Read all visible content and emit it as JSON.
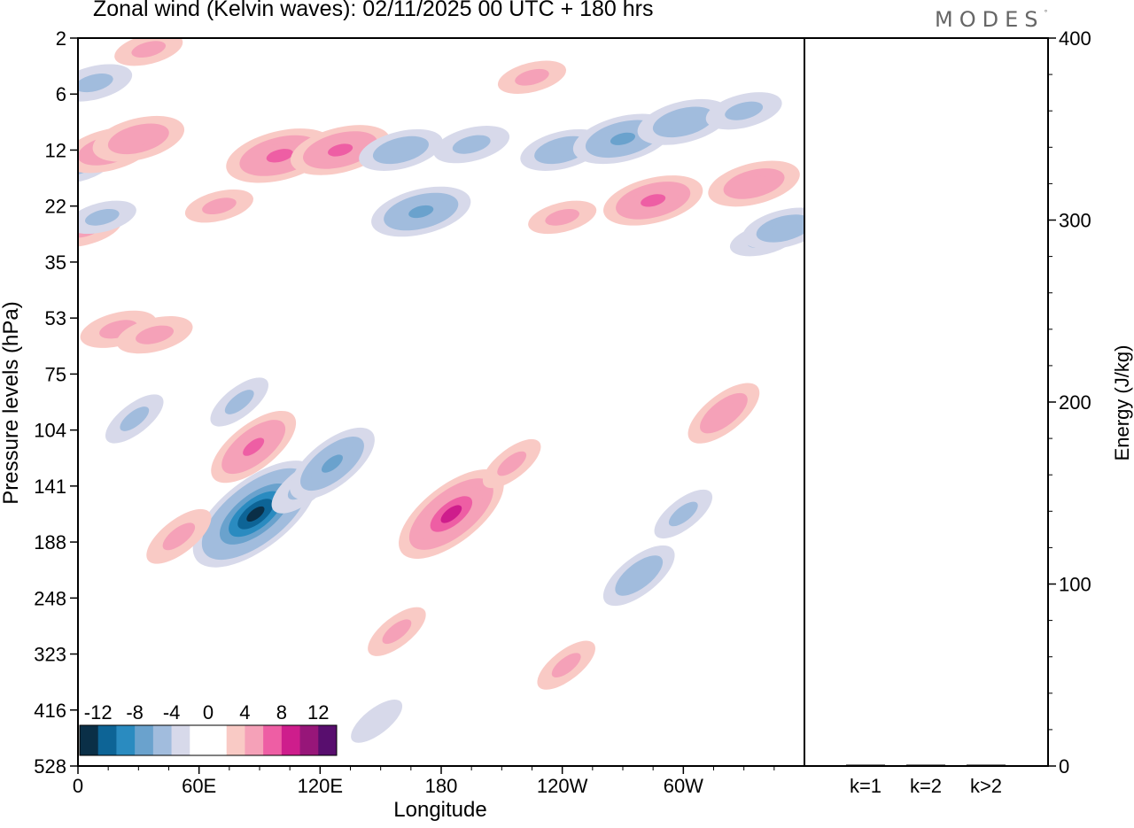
{
  "title": "Zonal wind (Kelvin waves):  02/11/2025  00 UTC  + 180 hrs",
  "brand": "MODES",
  "brand_mark": "°",
  "colors": {
    "neg": [
      "#0a2f47",
      "#0d6496",
      "#2a8bc0",
      "#6aa2cd",
      "#a1bcdd",
      "#d7d9ea"
    ],
    "zero": "#ffffff",
    "pos": [
      "#f9cac5",
      "#f5a1b8",
      "#ee5ea4",
      "#ce1d8c",
      "#971679",
      "#580e6e"
    ]
  },
  "chart_data": [
    {
      "type": "heatmap",
      "title": "Zonal wind (Kelvin waves):  02/11/2025  00 UTC  + 180 hrs",
      "xlabel": "Longitude",
      "ylabel": "Pressure levels (hPa)",
      "x_ticks": [
        "0",
        "60E",
        "120E",
        "180",
        "120W",
        "60W"
      ],
      "x_tick_degrees": [
        0,
        60,
        120,
        180,
        240,
        300
      ],
      "xlim": [
        0,
        360
      ],
      "y_ticks": [
        "2",
        "6",
        "12",
        "22",
        "35",
        "53",
        "75",
        "104",
        "141",
        "188",
        "248",
        "323",
        "416",
        "528"
      ],
      "colorbar_labels": [
        "-12",
        "-8",
        "-4",
        "0",
        "4",
        "8",
        "12"
      ],
      "colorbar_levels": [
        -14,
        -12,
        -10,
        -8,
        -6,
        -4,
        -2,
        2,
        4,
        6,
        8,
        10,
        12,
        14
      ],
      "features": [
        {
          "lon": 0,
          "lev": 2.3,
          "value": -3
        },
        {
          "lon": 3,
          "lev": 3.4,
          "value": 4
        },
        {
          "lon": 8,
          "lev": 0.8,
          "value": -4
        },
        {
          "lon": 15,
          "lev": 2.0,
          "value": 6
        },
        {
          "lon": 30,
          "lev": 1.8,
          "value": 6
        },
        {
          "lon": 35,
          "lev": 0.2,
          "value": 3
        },
        {
          "lon": 12,
          "lev": 3.2,
          "value": -3
        },
        {
          "lon": 20,
          "lev": 5.2,
          "value": 4
        },
        {
          "lon": 38,
          "lev": 5.3,
          "value": 4
        },
        {
          "lon": 28,
          "lev": 6.8,
          "value": -3
        },
        {
          "lon": 70,
          "lev": 3.0,
          "value": 3
        },
        {
          "lon": 87,
          "lev": 7.3,
          "value": 7
        },
        {
          "lon": 80,
          "lev": 6.5,
          "value": -3
        },
        {
          "lon": 88,
          "lev": 8.5,
          "value": -13
        },
        {
          "lon": 112,
          "lev": 8.0,
          "value": -4
        },
        {
          "lon": 126,
          "lev": 7.6,
          "value": -7
        },
        {
          "lon": 100,
          "lev": 2.1,
          "value": 8
        },
        {
          "lon": 130,
          "lev": 2.0,
          "value": 7
        },
        {
          "lon": 160,
          "lev": 2.0,
          "value": -5
        },
        {
          "lon": 170,
          "lev": 3.1,
          "value": -7
        },
        {
          "lon": 195,
          "lev": 1.9,
          "value": -4
        },
        {
          "lon": 225,
          "lev": 0.7,
          "value": 3
        },
        {
          "lon": 240,
          "lev": 2.0,
          "value": -5
        },
        {
          "lon": 270,
          "lev": 1.8,
          "value": -7
        },
        {
          "lon": 300,
          "lev": 1.5,
          "value": -6
        },
        {
          "lon": 330,
          "lev": 1.3,
          "value": -4
        },
        {
          "lon": 240,
          "lev": 3.2,
          "value": 3
        },
        {
          "lon": 285,
          "lev": 2.9,
          "value": 7
        },
        {
          "lon": 335,
          "lev": 2.6,
          "value": 6
        },
        {
          "lon": 340,
          "lev": 3.6,
          "value": -3
        },
        {
          "lon": 350,
          "lev": 3.4,
          "value": -5
        },
        {
          "lon": 320,
          "lev": 6.7,
          "value": 5
        },
        {
          "lon": 300,
          "lev": 8.5,
          "value": -3
        },
        {
          "lon": 278,
          "lev": 9.6,
          "value": -5
        },
        {
          "lon": 185,
          "lev": 8.5,
          "value": 10
        },
        {
          "lon": 215,
          "lev": 7.6,
          "value": 3
        },
        {
          "lon": 158,
          "lev": 10.6,
          "value": 3
        },
        {
          "lon": 242,
          "lev": 11.2,
          "value": 3
        },
        {
          "lon": 148,
          "lev": 12.2,
          "value": -2
        },
        {
          "lon": 50,
          "lev": 8.9,
          "value": 4
        }
      ]
    },
    {
      "type": "bar",
      "ylabel": "Energy (J/kg)",
      "ylim": [
        0,
        400
      ],
      "y_ticks": [
        "0",
        "100",
        "200",
        "300",
        "400"
      ],
      "categories": [
        "k=1",
        "k=2",
        "k>2"
      ],
      "values": [
        0.5,
        0.3,
        0.3
      ]
    }
  ]
}
